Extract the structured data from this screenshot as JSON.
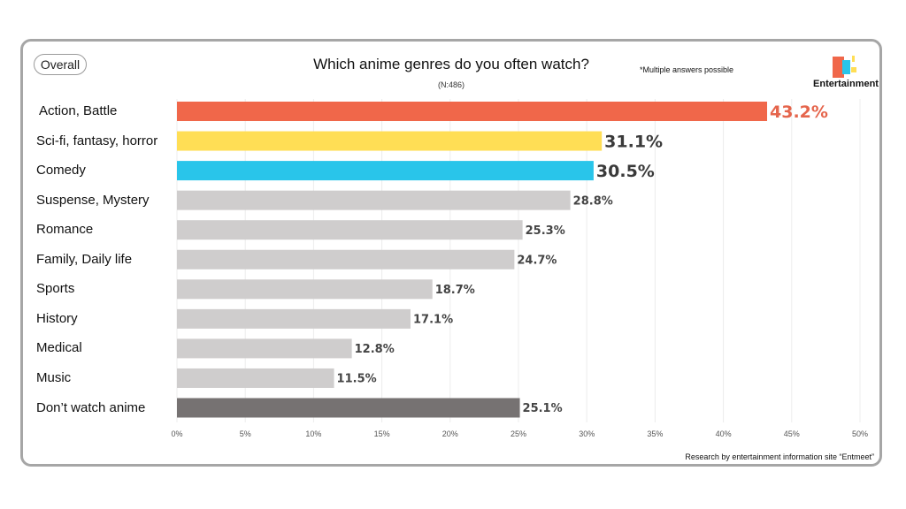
{
  "header": {
    "overall_label": "Overall",
    "title": "Which anime genres do you often watch?",
    "sample": "(N:486)",
    "note": "*Multiple answers possible",
    "brand": "Entertainment",
    "source": "Research by entertainment information site “Entmeet”"
  },
  "colors": {
    "top1": "#f0674a",
    "top2": "#ffde55",
    "top3": "#29c5ea",
    "default": "#cfcdcd",
    "none": "#767272",
    "top1_label": "#e5654c",
    "label": "#444444"
  },
  "chart_data": {
    "type": "bar",
    "orientation": "horizontal",
    "categories": [
      "Action, Battle",
      "Sci-fi, fantasy, horror",
      "Comedy",
      "Suspense, Mystery",
      "Romance",
      "Family, Daily life",
      "Sports",
      "History",
      "Medical",
      "Music",
      "Don’t watch anime"
    ],
    "values": [
      43.2,
      31.1,
      30.5,
      28.8,
      25.3,
      24.7,
      18.7,
      17.1,
      12.8,
      11.5,
      25.1
    ],
    "value_labels": [
      "43.2%",
      "31.1%",
      "30.5%",
      "28.8%",
      "25.3%",
      "24.7%",
      "18.7%",
      "17.1%",
      "12.8%",
      "11.5%",
      "25.1%"
    ],
    "xlim": [
      0,
      50
    ],
    "xticks": [
      "0%",
      "5%",
      "10%",
      "15%",
      "20%",
      "25%",
      "30%",
      "35%",
      "40%",
      "45%",
      "50%"
    ],
    "title": "Which anime genres do you often watch?",
    "grid": true
  }
}
